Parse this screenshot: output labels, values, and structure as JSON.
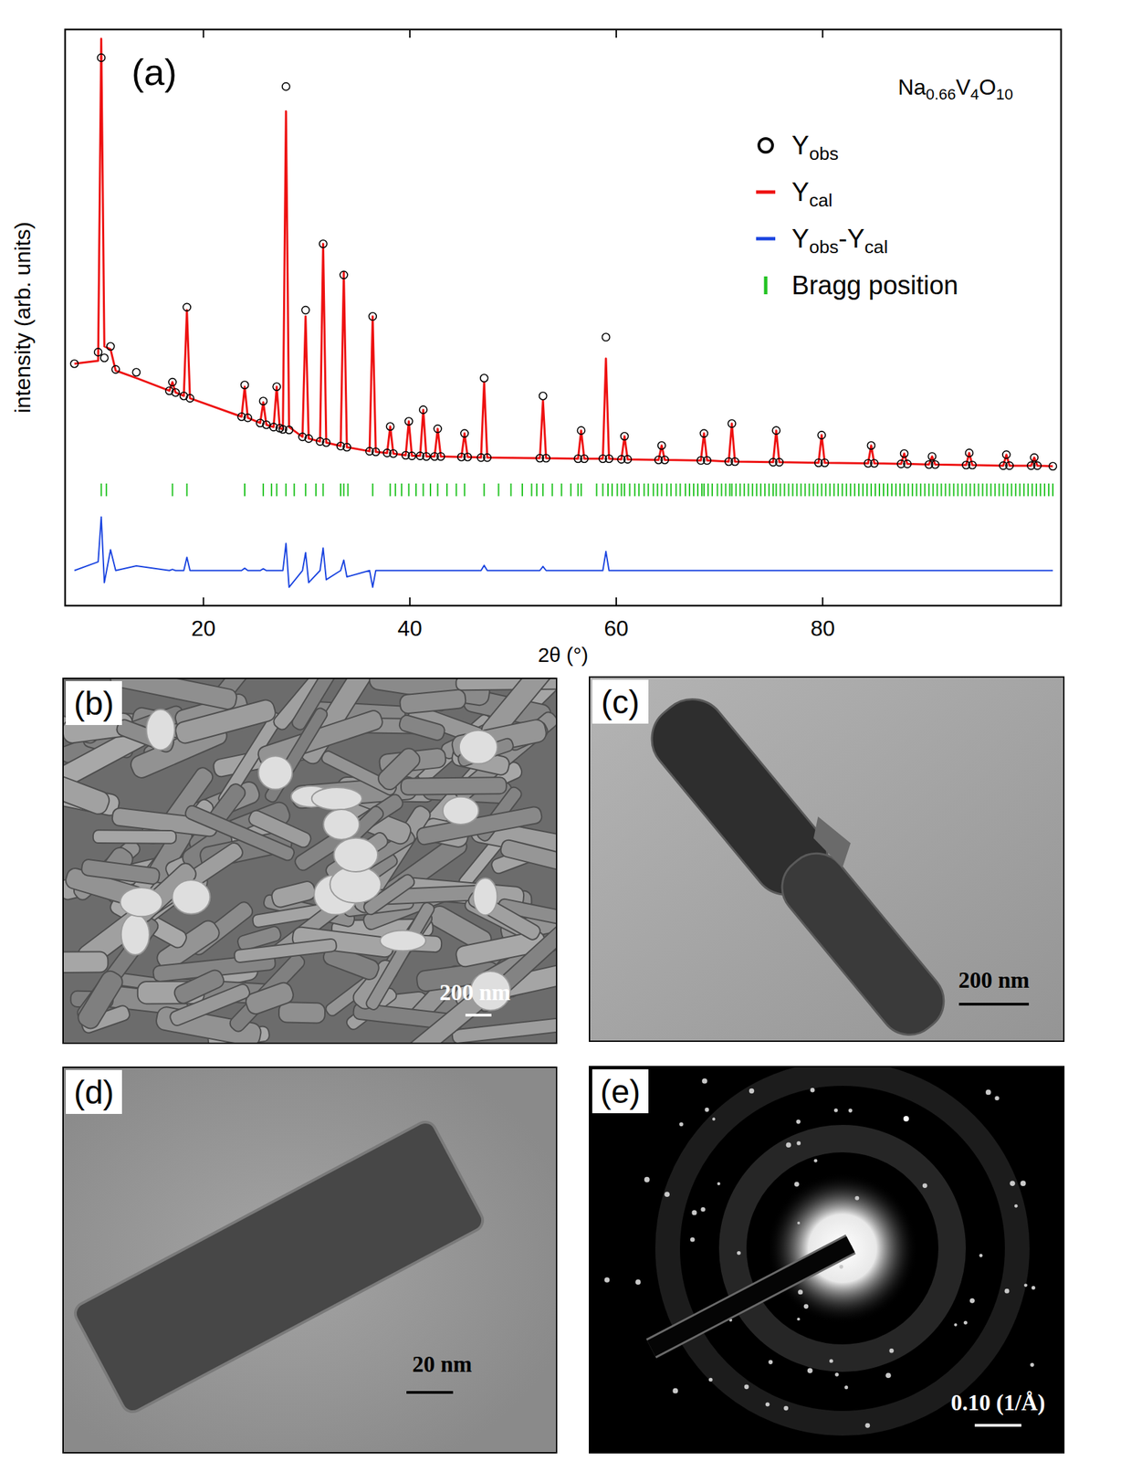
{
  "chart_data": {
    "type": "line",
    "panel_label": "(a)",
    "annotations": [
      "Na0.66V4O10"
    ],
    "x_label": "2θ (°)",
    "y_label": "intensity (arb. units)",
    "xlim": [
      6.6,
      103.1
    ],
    "ylim": [
      0,
      100
    ],
    "xticks": [
      20,
      40,
      60,
      80
    ],
    "tick_labels": "x",
    "grid": false,
    "legend": "upper right",
    "x": [
      7.5,
      9.8,
      10.1,
      10.4,
      11.0,
      11.5,
      13.5,
      16.7,
      17.0,
      17.3,
      18.1,
      18.4,
      18.7,
      23.7,
      24.0,
      24.3,
      25.5,
      25.8,
      26.1,
      26.8,
      27.1,
      27.4,
      27.7,
      28.0,
      28.3,
      29.6,
      29.9,
      30.2,
      31.3,
      31.6,
      31.9,
      33.3,
      33.6,
      33.9,
      36.1,
      36.4,
      36.7,
      37.8,
      38.1,
      38.4,
      39.6,
      39.9,
      40.2,
      41.0,
      41.3,
      41.6,
      42.4,
      42.7,
      43.0,
      45.0,
      45.3,
      45.6,
      46.9,
      47.2,
      47.5,
      52.6,
      52.9,
      53.2,
      56.3,
      56.6,
      56.9,
      58.7,
      59.0,
      59.3,
      60.5,
      60.8,
      61.1,
      64.1,
      64.4,
      64.7,
      68.2,
      68.5,
      68.8,
      70.9,
      71.2,
      71.5,
      75.2,
      75.5,
      75.8,
      79.6,
      79.9,
      80.2,
      84.4,
      84.7,
      85.0,
      87.6,
      87.9,
      88.2,
      90.3,
      90.6,
      90.9,
      93.9,
      94.2,
      94.5,
      97.5,
      97.8,
      98.1,
      100.2,
      100.5,
      100.8,
      102.3
    ],
    "series": [
      {
        "name": "Yobs",
        "color": "#000000",
        "type": "scatter",
        "marker": "circle",
        "values": [
          42,
          44,
          95.1,
          43,
          45,
          41,
          40.5,
          37.3,
          38.8,
          37,
          36.4,
          51.8,
          36,
          32.8,
          38.3,
          32.6,
          31.7,
          35.5,
          31.4,
          31,
          38,
          30.8,
          30.6,
          90.1,
          30.5,
          29.3,
          51.3,
          29,
          28.5,
          62.8,
          28.3,
          27.7,
          57.4,
          27.5,
          26.8,
          50.2,
          26.7,
          26.5,
          31.1,
          26.4,
          26.1,
          32,
          26,
          26,
          34,
          25.9,
          25.9,
          30.7,
          25.9,
          25.8,
          29.9,
          25.8,
          25.7,
          39.5,
          25.7,
          25.6,
          36.4,
          25.6,
          25.5,
          30.4,
          25.5,
          25.5,
          46.6,
          25.5,
          25.4,
          29.4,
          25.4,
          25.3,
          27.8,
          25.3,
          25.2,
          29.9,
          25.2,
          25,
          31.6,
          25,
          24.9,
          30.4,
          24.9,
          24.8,
          29.6,
          24.8,
          24.7,
          27.8,
          24.7,
          24.6,
          26.4,
          24.6,
          24.5,
          25.9,
          24.5,
          24.4,
          26.5,
          24.4,
          24.3,
          26.2,
          24.3,
          24.3,
          25.7,
          24.3,
          24.2
        ]
      },
      {
        "name": "Ycal",
        "color": "#ee1111",
        "type": "line",
        "line_style": "solid",
        "values": [
          42,
          42.5,
          98.4,
          45,
          44.5,
          40.8,
          39.5,
          37.3,
          38.8,
          37,
          36.4,
          51.3,
          36,
          32.8,
          38,
          32.6,
          31.7,
          35.3,
          31.4,
          31,
          38,
          30.8,
          30.6,
          85.8,
          31,
          29.3,
          50.2,
          29,
          28.5,
          62.8,
          28.3,
          27.7,
          57.9,
          27.5,
          26.8,
          50.2,
          26.7,
          26.5,
          31.1,
          26.4,
          26.1,
          32,
          26,
          26,
          34,
          25.9,
          25.9,
          30.7,
          25.9,
          25.8,
          29.9,
          25.8,
          25.7,
          38.8,
          25.7,
          25.6,
          35.6,
          25.6,
          25.5,
          30.4,
          25.5,
          25.5,
          42.9,
          25.5,
          25.4,
          29.4,
          25.4,
          25.3,
          27.8,
          25.3,
          25.2,
          29.9,
          25.2,
          25,
          31.6,
          25,
          24.9,
          30.4,
          24.9,
          24.8,
          29.6,
          24.8,
          24.7,
          27.8,
          24.7,
          24.6,
          26.4,
          24.6,
          24.5,
          25.9,
          24.5,
          24.4,
          26.5,
          24.4,
          24.3,
          26.2,
          24.3,
          24.3,
          25.7,
          24.3,
          24.2
        ]
      },
      {
        "name": "Yobs-Ycal",
        "color": "#1a44e0",
        "type": "line",
        "line_style": "solid",
        "values": [
          6.1,
          7.6,
          15.4,
          4.0,
          9.7,
          6.1,
          6.9,
          6.1,
          6.3,
          6.1,
          6.1,
          8.4,
          6.1,
          6.1,
          6.5,
          6.1,
          6.1,
          6.4,
          6.1,
          6.1,
          6.1,
          6.1,
          6.1,
          10.8,
          3.2,
          6.1,
          9.2,
          4.0,
          6.1,
          10.0,
          4.5,
          6.1,
          7.9,
          5.0,
          6.1,
          3.2,
          6.1,
          6.1,
          6.1,
          6.1,
          6.1,
          6.1,
          6.1,
          6.1,
          6.1,
          6.1,
          6.1,
          6.1,
          6.1,
          6.1,
          6.1,
          6.1,
          6.1,
          7.0,
          6.1,
          6.1,
          6.8,
          6.1,
          6.1,
          6.1,
          6.1,
          6.1,
          9.4,
          6.1,
          6.1,
          6.1,
          6.1,
          6.1,
          6.1,
          6.1,
          6.1,
          6.1,
          6.1,
          6.1,
          6.1,
          6.1,
          6.1,
          6.1,
          6.1,
          6.1,
          6.1,
          6.1,
          6.1,
          6.1,
          6.1,
          6.1,
          6.1,
          6.1,
          6.1,
          6.1,
          6.1,
          6.1,
          6.1,
          6.1,
          6.1,
          6.1,
          6.1,
          6.1,
          6.1,
          6.1,
          6.1
        ]
      },
      {
        "name": "Bragg position",
        "color": "#22c322",
        "type": "bragg",
        "marker": "tick",
        "x": [
          10.1,
          10.6,
          17.0,
          18.4,
          24.0,
          25.8,
          26.6,
          27.1,
          28.0,
          28.8,
          29.9,
          30.9,
          31.6,
          33.3,
          33.6,
          34.0,
          36.4,
          38.1,
          38.6,
          39.2,
          39.9,
          40.6,
          41.3,
          42.0,
          42.7,
          43.6,
          44.5,
          45.3,
          47.2,
          48.6,
          49.8,
          50.9,
          51.8,
          52.3,
          52.9,
          53.8,
          54.7,
          55.6,
          56.3,
          56.6,
          58.1,
          58.7,
          59.2,
          59.6,
          60.1,
          60.5,
          60.8,
          61.3,
          61.8,
          62.2,
          62.7,
          63.1,
          63.6,
          64.0,
          64.4,
          64.9,
          65.3,
          65.8,
          66.2,
          66.7,
          67.1,
          67.5,
          67.9,
          68.3,
          68.5,
          68.9,
          69.3,
          69.8,
          70.2,
          70.6,
          71.0,
          71.2,
          71.6,
          72.0,
          72.4,
          72.8,
          73.2,
          73.6,
          74.0,
          74.4,
          74.8,
          75.2,
          75.5,
          75.9,
          76.3,
          76.7,
          77.1,
          77.5,
          77.9,
          78.3,
          78.7,
          79.1,
          79.5,
          79.9,
          80.3,
          80.7,
          81.1,
          81.5,
          81.9,
          82.3,
          82.7,
          83.1,
          83.5,
          83.9,
          84.3,
          84.7,
          85.1,
          85.5,
          85.9,
          86.3,
          86.7,
          87.1,
          87.5,
          87.9,
          88.3,
          88.7,
          89.1,
          89.5,
          89.9,
          90.3,
          90.7,
          91.1,
          91.5,
          91.9,
          92.3,
          92.7,
          93.1,
          93.5,
          93.9,
          94.3,
          94.7,
          95.1,
          95.5,
          95.9,
          96.3,
          96.7,
          97.1,
          97.5,
          97.9,
          98.3,
          98.7,
          99.1,
          99.5,
          99.9,
          100.3,
          100.7,
          101.1,
          101.5,
          101.9,
          102.3
        ]
      }
    ]
  },
  "panels": [
    {
      "label": "(b)",
      "scale_bar": "200 nm"
    },
    {
      "label": "(c)",
      "scale_bar": "200 nm"
    },
    {
      "label": "(d)",
      "scale_bar": "20 nm"
    },
    {
      "label": "(e)",
      "scale_bar": "0.10 (1/Å)"
    }
  ]
}
